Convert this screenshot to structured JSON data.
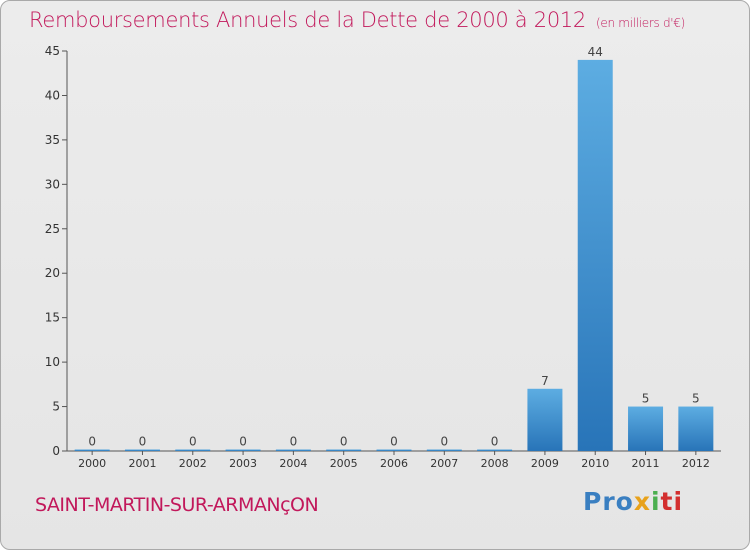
{
  "title": "Remboursements Annuels de la Dette de 2000 à 2012",
  "unit": "(en milliers d'€)",
  "commune": "SAINT-MARTIN-SUR-ARMANçON",
  "logo": {
    "p1": "Pro",
    "p2": "x",
    "p3": "i",
    "p4": "ti"
  },
  "colors": {
    "accent": "#c2185b",
    "bar_top": "#5dade2",
    "bar_bottom": "#2874b8"
  },
  "chart_data": {
    "type": "bar",
    "title": "Remboursements Annuels de la Dette de 2000 à 2012",
    "xlabel": "",
    "ylabel": "",
    "categories": [
      "2000",
      "2001",
      "2002",
      "2003",
      "2004",
      "2005",
      "2006",
      "2007",
      "2008",
      "2009",
      "2010",
      "2011",
      "2012"
    ],
    "values": [
      0,
      0,
      0,
      0,
      0,
      0,
      0,
      0,
      0,
      7,
      44,
      5,
      5
    ],
    "ylim": [
      0,
      45
    ],
    "yticks": [
      0,
      5,
      10,
      15,
      20,
      25,
      30,
      35,
      40,
      45
    ],
    "grid": false,
    "legend": "none"
  }
}
